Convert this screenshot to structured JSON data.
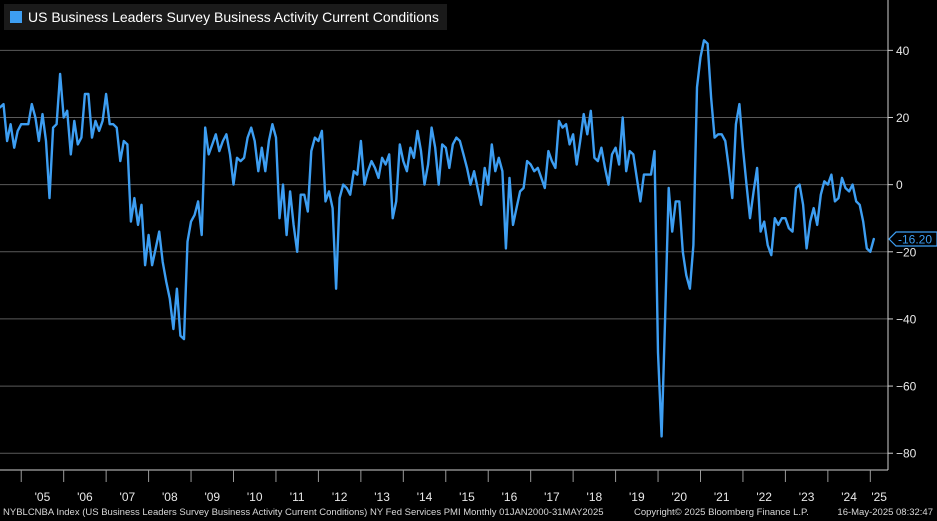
{
  "legend": {
    "label": "US Business Leaders Survey Business Activity Current Conditions",
    "color": "#3d9ef2"
  },
  "last_value_label": "-16.20",
  "footer": {
    "left": "NYBLCNBA Index (US Business Leaders Survey Business Activity Current Conditions) NY Fed Services PMI  Monthly 01JAN2000-31MAY2025",
    "center": "Copyright© 2025 Bloomberg Finance L.P.",
    "right": "16-May-2025 08:32:47"
  },
  "chart_data": {
    "type": "line",
    "title": "",
    "xlabel": "",
    "ylabel": "",
    "ylim": [
      -85,
      55
    ],
    "yticks": [
      40,
      20,
      0,
      -20,
      -40,
      -60,
      -80
    ],
    "xlim": [
      "2004-07",
      "2025-06"
    ],
    "xticks": [
      {
        "label": "'05",
        "at": "2005-01"
      },
      {
        "label": "'06",
        "at": "2006-01"
      },
      {
        "label": "'07",
        "at": "2007-01"
      },
      {
        "label": "'08",
        "at": "2008-01"
      },
      {
        "label": "'09",
        "at": "2009-01"
      },
      {
        "label": "'10",
        "at": "2010-01"
      },
      {
        "label": "'11",
        "at": "2011-01"
      },
      {
        "label": "'12",
        "at": "2012-01"
      },
      {
        "label": "'13",
        "at": "2013-01"
      },
      {
        "label": "'14",
        "at": "2014-01"
      },
      {
        "label": "'15",
        "at": "2015-01"
      },
      {
        "label": "'16",
        "at": "2016-01"
      },
      {
        "label": "'17",
        "at": "2017-01"
      },
      {
        "label": "'18",
        "at": "2018-01"
      },
      {
        "label": "'19",
        "at": "2019-01"
      },
      {
        "label": "'20",
        "at": "2020-01"
      },
      {
        "label": "'21",
        "at": "2021-01"
      },
      {
        "label": "'22",
        "at": "2022-01"
      },
      {
        "label": "'23",
        "at": "2023-01"
      },
      {
        "label": "'24",
        "at": "2024-01"
      },
      {
        "label": "'25",
        "at": "2025-01"
      }
    ],
    "grid": true,
    "legend_position": "top-left",
    "series": [
      {
        "name": "US Business Leaders Survey Business Activity Current Conditions",
        "color": "#3d9ef2",
        "start": "2004-07",
        "frequency": "monthly",
        "values": [
          23,
          24,
          13,
          18,
          11,
          16,
          18,
          18,
          18,
          24,
          20,
          13,
          21,
          13,
          -4,
          17,
          18,
          33,
          20,
          22,
          9,
          19,
          12,
          14,
          27,
          27,
          14,
          19,
          16,
          19,
          27,
          18,
          18,
          17,
          7,
          13,
          12,
          -11,
          -4,
          -12,
          -6,
          -24,
          -15,
          -24,
          -19,
          -14,
          -23,
          -29,
          -34,
          -43,
          -31,
          -45,
          -46,
          -17,
          -11,
          -9,
          -5,
          -15,
          17,
          9,
          12,
          15,
          10,
          13,
          15,
          9,
          0,
          8,
          7,
          8,
          14,
          17,
          13,
          4,
          11,
          4,
          13,
          18,
          14,
          -10,
          0,
          -15,
          -2,
          -12,
          -20,
          -3,
          -3,
          -8,
          10,
          14,
          13,
          16,
          -5,
          -2,
          -7,
          -31,
          -4,
          0,
          -1,
          -3,
          4,
          3,
          13,
          0,
          4,
          7,
          5,
          2,
          8,
          6,
          9,
          -10,
          -5,
          12,
          7,
          4,
          11,
          8,
          16,
          10,
          0,
          6,
          17,
          11,
          0,
          12,
          11,
          5,
          12,
          14,
          13,
          9,
          5,
          0,
          4,
          -1,
          -6,
          5,
          0,
          12,
          4,
          8,
          4,
          -19,
          2,
          -12,
          -7,
          -2,
          -1,
          7,
          6,
          4,
          5,
          2,
          -1,
          10,
          7,
          5,
          19,
          17,
          18,
          12,
          15,
          6,
          13,
          21,
          15,
          22,
          8,
          7,
          11,
          5,
          0,
          9,
          11,
          6,
          20,
          4,
          10,
          9,
          2,
          -5,
          3,
          3,
          3,
          10,
          -50,
          -75,
          -40,
          -1,
          -14,
          -5,
          -5,
          -20,
          -27,
          -31,
          -18,
          29,
          38,
          43,
          42,
          26,
          14,
          15,
          15,
          13,
          5,
          -4,
          18,
          24,
          11,
          0,
          -10,
          -2,
          5,
          -14,
          -11,
          -18,
          -21,
          -10,
          -12,
          -10,
          -10,
          -13,
          -14,
          -1,
          0,
          -6,
          -19,
          -11,
          -7,
          -12,
          -3,
          1,
          0,
          3,
          -5,
          -4,
          2,
          -1,
          -2,
          0,
          -5,
          -6,
          -11,
          -19,
          -20,
          -16.2
        ]
      }
    ]
  }
}
